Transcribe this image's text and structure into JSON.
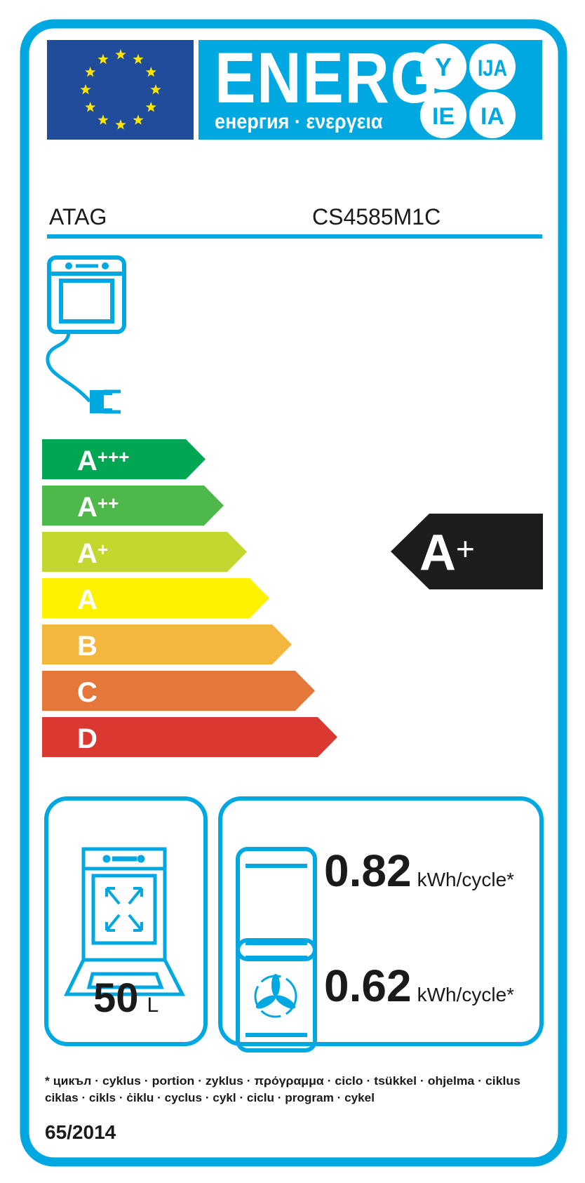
{
  "colors": {
    "frame_blue": "#00a8e1",
    "eu_blue": "#214b9b",
    "eu_star": "#ffe600",
    "class_colors": [
      "#00a651",
      "#4fb84a",
      "#c3d72e",
      "#fff200",
      "#f4b63e",
      "#e5773a",
      "#db3832"
    ],
    "indicator": "#1d1d1b"
  },
  "header": {
    "title": "ENERG",
    "subtitle": "енергия · ενεργεια",
    "suffixes": [
      "Y",
      "IJA",
      "IE",
      "IA"
    ]
  },
  "product": {
    "supplier": "ATAG",
    "model": "CS4585M1C",
    "appliance_icon": "electric-oven-icon"
  },
  "scale": {
    "classes": [
      {
        "letter": "A",
        "plus": "+++"
      },
      {
        "letter": "A",
        "plus": "++"
      },
      {
        "letter": "A",
        "plus": "+"
      },
      {
        "letter": "A",
        "plus": ""
      },
      {
        "letter": "B",
        "plus": ""
      },
      {
        "letter": "C",
        "plus": ""
      },
      {
        "letter": "D",
        "plus": ""
      }
    ],
    "rating": {
      "letter": "A",
      "plus": "+",
      "index": 2
    }
  },
  "volume": {
    "value": "50",
    "unit": "L",
    "icon": "oven-cavity-icon"
  },
  "consumption": [
    {
      "value": "0.82",
      "unit": "kWh/cycle*",
      "icon": "conventional-heating-icon"
    },
    {
      "value": "0.62",
      "unit": "kWh/cycle*",
      "icon": "fan-forced-heating-icon"
    }
  ],
  "footnote": {
    "line1": "* цикъл · cyklus · portion · zyklus · πρόγραμμα · ciclo · tsükkel · ohjelma · ciklus",
    "line2": "ciklas · cikls · ċiklu · cyclus · cykl · ciclu · program · cykel"
  },
  "regulation": "65/2014"
}
